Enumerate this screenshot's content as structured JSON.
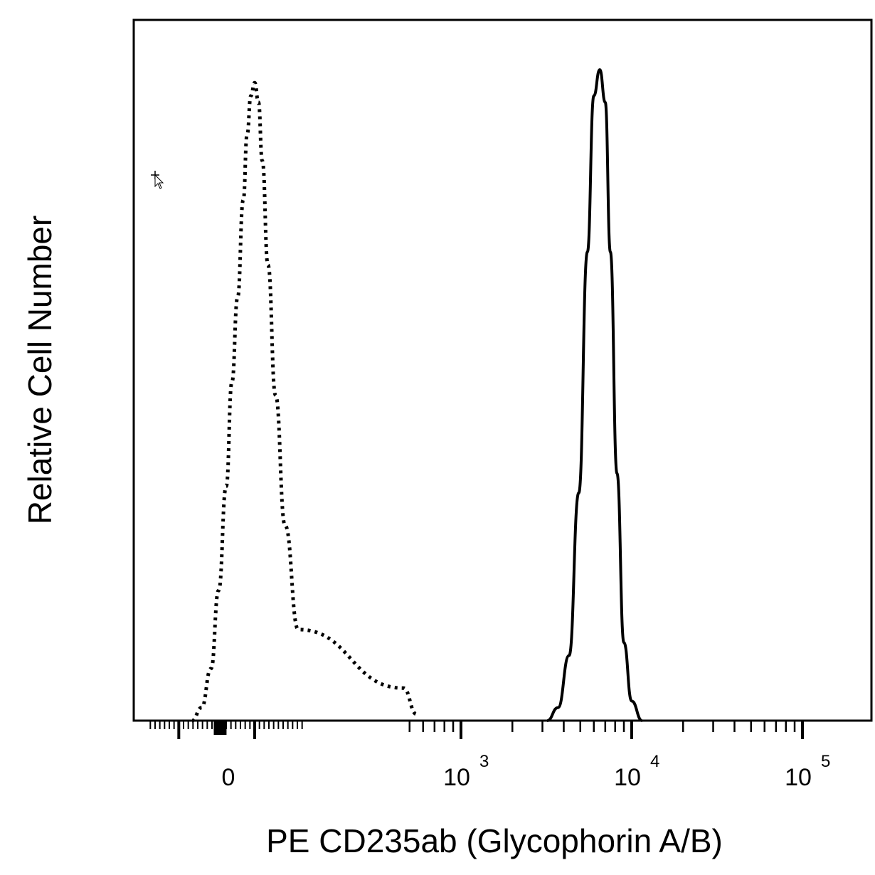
{
  "chart_data": {
    "type": "line",
    "xlabel": "PE CD235ab (Glycophorin A/B)",
    "ylabel": "Relative Cell Number",
    "x_scale": "biexponential",
    "x_ticks": [
      {
        "value": 0,
        "base": "0",
        "exp": ""
      },
      {
        "value": 1000,
        "base": "10",
        "exp": "3"
      },
      {
        "value": 10000,
        "base": "10",
        "exp": "4"
      },
      {
        "value": 100000,
        "base": "10",
        "exp": "5"
      }
    ],
    "y_ticks_shown": false,
    "series": [
      {
        "style": "dotted",
        "x": [
          -180,
          -130,
          -80,
          -40,
          0,
          30,
          60,
          90,
          110,
          130,
          150,
          170,
          190,
          220,
          260,
          310,
          380,
          460,
          550
        ],
        "y": [
          0.0,
          0.02,
          0.08,
          0.2,
          0.36,
          0.52,
          0.65,
          0.8,
          0.9,
          0.96,
          0.98,
          0.95,
          0.86,
          0.7,
          0.5,
          0.3,
          0.14,
          0.05,
          0.01
        ]
      },
      {
        "style": "solid",
        "x": [
          3200,
          3700,
          4300,
          4900,
          5500,
          6000,
          6500,
          7000,
          7500,
          8200,
          9000,
          10000,
          11500
        ],
        "y": [
          0.0,
          0.02,
          0.1,
          0.35,
          0.72,
          0.96,
          1.0,
          0.95,
          0.72,
          0.38,
          0.12,
          0.03,
          0.0
        ]
      }
    ]
  }
}
